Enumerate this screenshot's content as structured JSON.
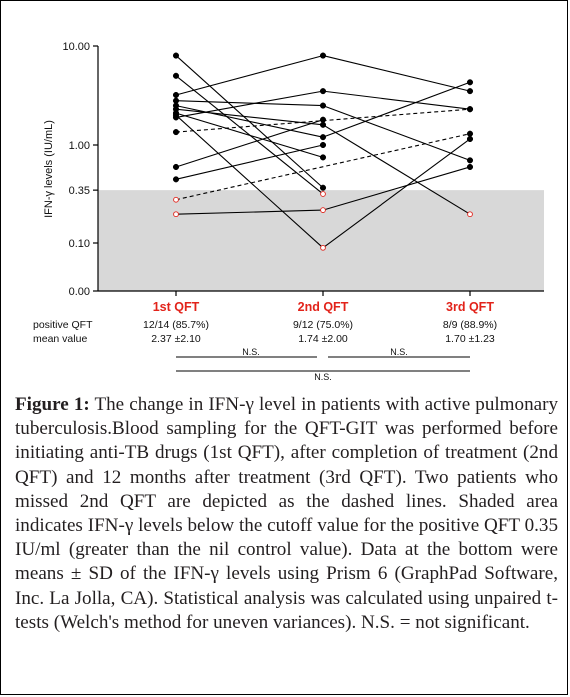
{
  "chart_data": {
    "type": "line",
    "title": "",
    "ylabel": "IFN-γ levels (IU/mL)",
    "xlabel": "",
    "y_scale": "broken log (linear 0.00–0.10, log above)",
    "ylim": [
      0,
      10
    ],
    "y_ticks": [
      "10.00",
      "1.00",
      "0.35",
      "0.10",
      "0.00"
    ],
    "y_tick_values": [
      10,
      1,
      0.35,
      0.1,
      0
    ],
    "categories": [
      "1st QFT",
      "2nd QFT",
      "3rd QFT"
    ],
    "shaded_region": {
      "from": 0,
      "to": 0.35,
      "color": "#d8d8d8"
    },
    "cutoff": 0.35,
    "series": [
      {
        "values": [
          8.0,
          0.37,
          null
        ],
        "style": "solid"
      },
      {
        "values": [
          5.0,
          0.32,
          null
        ],
        "style": "solid"
      },
      {
        "values": [
          3.2,
          8.0,
          3.5
        ],
        "style": "solid"
      },
      {
        "values": [
          2.8,
          2.5,
          0.7
        ],
        "style": "solid"
      },
      {
        "values": [
          2.5,
          1.2,
          4.3
        ],
        "style": "solid"
      },
      {
        "values": [
          2.3,
          1.6,
          0.2
        ],
        "style": "solid"
      },
      {
        "values": [
          2.1,
          0.75,
          null
        ],
        "style": "solid"
      },
      {
        "values": [
          2.0,
          0.09,
          1.15
        ],
        "style": "solid"
      },
      {
        "values": [
          1.9,
          3.5,
          2.3
        ],
        "style": "solid"
      },
      {
        "values": [
          0.6,
          1.8,
          null
        ],
        "style": "solid"
      },
      {
        "values": [
          0.45,
          1.0,
          null
        ],
        "style": "solid"
      },
      {
        "values": [
          0.2,
          0.22,
          0.6
        ],
        "style": "solid"
      },
      {
        "values": [
          1.35,
          null,
          2.3
        ],
        "style": "dashed"
      },
      {
        "values": [
          0.28,
          null,
          1.3
        ],
        "style": "dashed"
      }
    ],
    "below_cutoff_marker": {
      "fill": "#ffffff",
      "stroke": "#e2231a"
    },
    "above_cutoff_marker": {
      "fill": "#000000"
    }
  },
  "table": {
    "rows": [
      {
        "label": "positive QFT",
        "values": [
          "12/14 (85.7%)",
          "9/12 (75.0%)",
          "8/9 (88.9%)"
        ]
      },
      {
        "label": "mean value",
        "values": [
          "2.37 ±2.10",
          "1.74 ±2.00",
          "1.70 ±1.23"
        ]
      }
    ],
    "significance": [
      {
        "between": "1st QFT vs 2nd QFT",
        "text": "N.S."
      },
      {
        "between": "2nd QFT vs 3rd QFT",
        "text": "N.S."
      },
      {
        "between": "1st QFT vs 3rd QFT",
        "text": "N.S."
      }
    ]
  },
  "caption": {
    "label": "Figure 1:",
    "text": " The change in IFN-γ level in patients with active pulmonary tuberculosis.Blood sampling for the QFT-GIT was performed before initiating anti-TB drugs (1st QFT), after completion of treatment (2nd QFT) and 12 months after treatment (3rd QFT). Two patients who missed 2nd QFT are depicted as the dashed lines. Shaded area indicates IFN-γ levels below the cutoff value for the positive QFT 0.35 IU/ml (greater than the nil control value). Data at the bottom were means ± SD of the IFN-γ levels using Prism 6 (GraphPad Software, Inc. La Jolla, CA). Statistical analysis was calculated using unpaired t-tests (Welch's method for uneven variances). N.S. = not significant."
  }
}
